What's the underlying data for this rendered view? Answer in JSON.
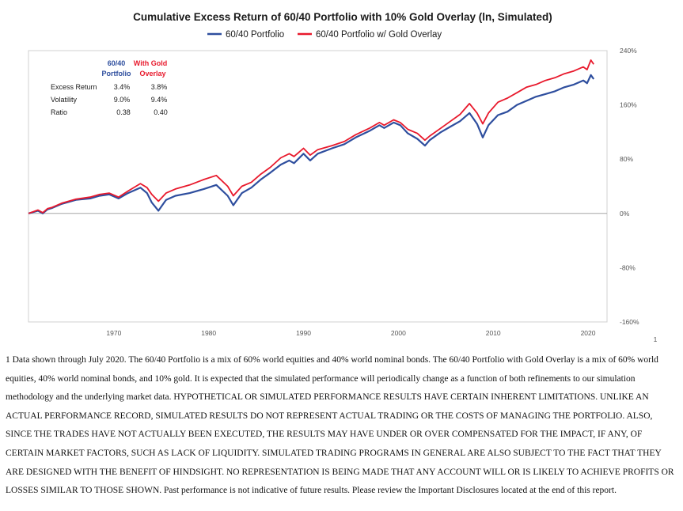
{
  "chart_data": {
    "type": "line",
    "title": "Cumulative Excess Return of 60/40 Portfolio with 10% Gold Overlay (ln, Simulated)",
    "xlabel": "",
    "ylabel": "",
    "x_ticks": [
      "1970",
      "1980",
      "1990",
      "2000",
      "2010",
      "2020"
    ],
    "x_range": [
      1961,
      2022
    ],
    "y_ticks": [
      "240%",
      "160%",
      "80%",
      "0%",
      "-80%",
      "-160%"
    ],
    "y_tick_values": [
      240,
      160,
      80,
      0,
      -80,
      -160
    ],
    "ylim": [
      -160,
      240
    ],
    "legend_position": "top-center",
    "grid": false,
    "footnote_marker": "1",
    "series": [
      {
        "name": "60/40 Portfolio",
        "color": "#2e4e9e",
        "x": [
          1961.0,
          1962.0,
          1962.5,
          1963.0,
          1963.5,
          1964.5,
          1966.0,
          1967.5,
          1968.5,
          1969.5,
          1970.5,
          1971.5,
          1972.8,
          1973.5,
          1974.0,
          1974.7,
          1975.5,
          1976.5,
          1978.0,
          1979.5,
          1980.8,
          1982.0,
          1982.6,
          1983.5,
          1984.5,
          1985.5,
          1986.5,
          1987.6,
          1988.5,
          1989.0,
          1990.0,
          1990.7,
          1991.5,
          1993.0,
          1994.3,
          1995.5,
          1997.0,
          1998.0,
          1998.5,
          1999.5,
          2000.2,
          2001.0,
          2002.0,
          2002.8,
          2003.3,
          2004.5,
          2005.5,
          2006.5,
          2007.5,
          2008.3,
          2008.9,
          2009.5,
          2010.5,
          2011.5,
          2012.5,
          2013.5,
          2014.5,
          2015.5,
          2016.5,
          2017.5,
          2018.5,
          2019.5,
          2019.9,
          2020.3,
          2020.6
        ],
        "values": [
          0,
          4,
          0,
          6,
          8,
          14,
          20,
          22,
          26,
          28,
          22,
          30,
          38,
          30,
          16,
          4,
          20,
          26,
          30,
          36,
          42,
          26,
          12,
          30,
          38,
          50,
          60,
          72,
          78,
          74,
          88,
          78,
          88,
          96,
          102,
          112,
          122,
          130,
          126,
          134,
          130,
          118,
          110,
          100,
          108,
          120,
          128,
          136,
          148,
          132,
          112,
          130,
          145,
          150,
          160,
          166,
          172,
          176,
          180,
          186,
          190,
          196,
          192,
          204,
          198
        ]
      },
      {
        "name": "60/40 Portfolio w/ Gold Overlay",
        "color": "#e8192c",
        "x": [
          1961.0,
          1962.0,
          1962.5,
          1963.0,
          1963.5,
          1964.5,
          1966.0,
          1967.5,
          1968.5,
          1969.5,
          1970.5,
          1971.5,
          1972.8,
          1973.5,
          1974.0,
          1974.7,
          1975.5,
          1976.5,
          1978.0,
          1979.5,
          1980.8,
          1982.0,
          1982.6,
          1983.5,
          1984.5,
          1985.5,
          1986.5,
          1987.6,
          1988.5,
          1989.0,
          1990.0,
          1990.7,
          1991.5,
          1993.0,
          1994.3,
          1995.5,
          1997.0,
          1998.0,
          1998.5,
          1999.5,
          2000.2,
          2001.0,
          2002.0,
          2002.8,
          2003.3,
          2004.5,
          2005.5,
          2006.5,
          2007.5,
          2008.3,
          2008.9,
          2009.5,
          2010.5,
          2011.5,
          2012.5,
          2013.5,
          2014.5,
          2015.5,
          2016.5,
          2017.5,
          2018.5,
          2019.5,
          2019.9,
          2020.3,
          2020.6
        ],
        "values": [
          0,
          5,
          1,
          7,
          9,
          15,
          21,
          24,
          28,
          30,
          24,
          33,
          44,
          38,
          28,
          18,
          30,
          36,
          42,
          50,
          56,
          40,
          26,
          40,
          46,
          58,
          68,
          82,
          88,
          84,
          96,
          86,
          94,
          100,
          106,
          116,
          126,
          134,
          130,
          138,
          134,
          124,
          118,
          108,
          114,
          126,
          136,
          146,
          162,
          148,
          132,
          148,
          164,
          170,
          178,
          186,
          190,
          196,
          200,
          206,
          210,
          216,
          212,
          226,
          220
        ]
      }
    ]
  },
  "stats_table": {
    "col_heads": [
      [
        "60/40",
        "Portfolio"
      ],
      [
        "With Gold",
        "Overlay"
      ]
    ],
    "head_colors": [
      "#2e4e9e",
      "#e8192c"
    ],
    "rows": [
      {
        "label": "Excess Return",
        "v1": "3.4%",
        "v2": "3.8%"
      },
      {
        "label": "Volatility",
        "v1": "9.0%",
        "v2": "9.4%"
      },
      {
        "label": "Ratio",
        "v1": "0.38",
        "v2": "0.40"
      }
    ]
  },
  "footnote": {
    "text": "1 Data shown through July 2020. The 60/40 Portfolio is a mix of 60% world equities and 40% world nominal bonds. The 60/40 Portfolio with Gold Overlay is a mix of 60% world equities, 40% world nominal bonds, and 10% gold. It is expected that the simulated performance will periodically change as a function of both refinements to our simulation methodology and the underlying market data. HYPOTHETICAL OR SIMULATED PERFORMANCE RESULTS HAVE CERTAIN INHERENT LIMITATIONS. UNLIKE AN ACTUAL PERFORMANCE RECORD, SIMULATED RESULTS DO NOT REPRESENT ACTUAL TRADING OR THE COSTS OF MANAGING THE PORTFOLIO. ALSO, SINCE THE TRADES HAVE NOT ACTUALLY BEEN EXECUTED, THE RESULTS MAY HAVE UNDER OR OVER COMPENSATED FOR THE IMPACT, IF ANY, OF CERTAIN MARKET FACTORS, SUCH AS LACK OF LIQUIDITY. SIMULATED TRADING PROGRAMS IN GENERAL ARE ALSO SUBJECT TO THE FACT THAT THEY ARE DESIGNED WITH THE BENEFIT OF HINDSIGHT. NO REPRESENTATION IS BEING MADE THAT ANY ACCOUNT WILL OR IS LIKELY TO ACHIEVE PROFITS OR LOSSES SIMILAR TO THOSE SHOWN. Past performance is not indicative of future results. Please review the Important Disclosures located at the end of this report."
  }
}
